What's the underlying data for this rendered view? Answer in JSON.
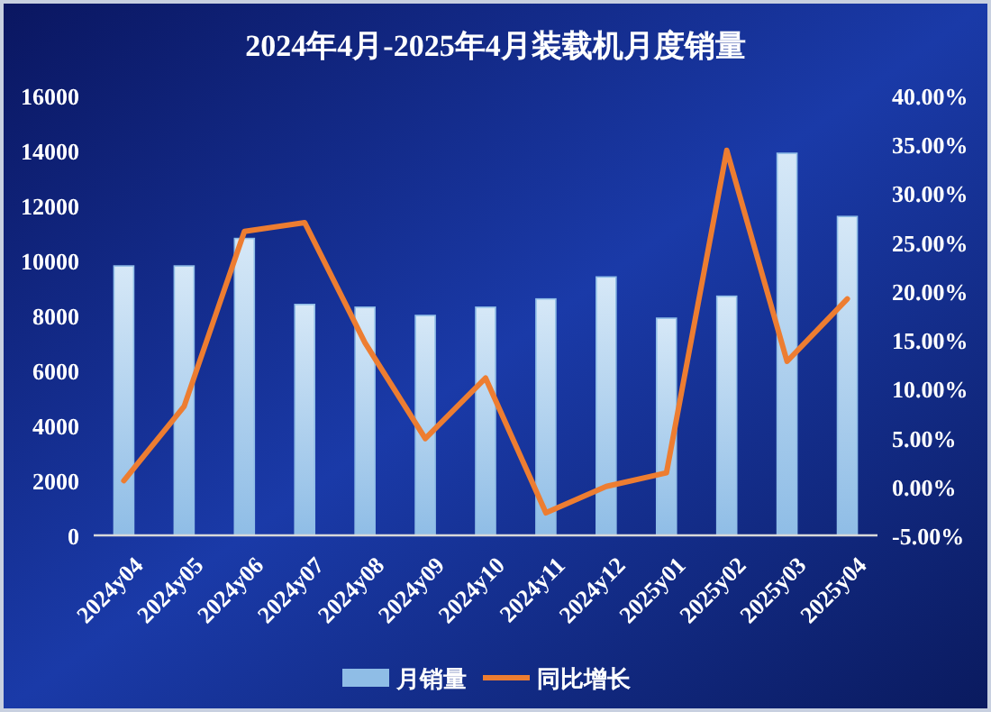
{
  "chart_data": {
    "type": "bar",
    "title": "2024年4月-2025年4月装载机月度销量",
    "categories": [
      "2024y04",
      "2024y05",
      "2024y06",
      "2024y07",
      "2024y08",
      "2024y09",
      "2024y10",
      "2024y11",
      "2024y12",
      "2025y01",
      "2025y02",
      "2025y03",
      "2025y04"
    ],
    "series": [
      {
        "name": "月销量",
        "color": "#8fbde6",
        "values": [
          9800,
          9800,
          10800,
          8400,
          8300,
          8000,
          8300,
          8600,
          9400,
          7900,
          8700,
          13900,
          11600
        ]
      },
      {
        "name": "同比增长",
        "type": "line",
        "axis": "y2",
        "color": "#ed7d31",
        "values": [
          0.6,
          8.2,
          26.1,
          27.0,
          14.7,
          4.9,
          11.1,
          -2.7,
          0.0,
          1.4,
          34.4,
          12.8,
          19.2
        ]
      }
    ],
    "ylim": [
      0,
      16000
    ],
    "yticks": [
      0,
      2000,
      4000,
      6000,
      8000,
      10000,
      12000,
      14000,
      16000
    ],
    "y2lim": [
      -5,
      40
    ],
    "y2ticks": [
      {
        "value": -5,
        "label": "-5.00%"
      },
      {
        "value": 0,
        "label": "0.00%"
      },
      {
        "value": 5,
        "label": "5.00%"
      },
      {
        "value": 10,
        "label": "10.00%"
      },
      {
        "value": 15,
        "label": "15.00%"
      },
      {
        "value": 20,
        "label": "20.00%"
      },
      {
        "value": 25,
        "label": "25.00%"
      },
      {
        "value": 30,
        "label": "30.00%"
      },
      {
        "value": 35,
        "label": "35.00%"
      },
      {
        "value": 40,
        "label": "40.00%"
      }
    ],
    "legend": "bottom"
  }
}
